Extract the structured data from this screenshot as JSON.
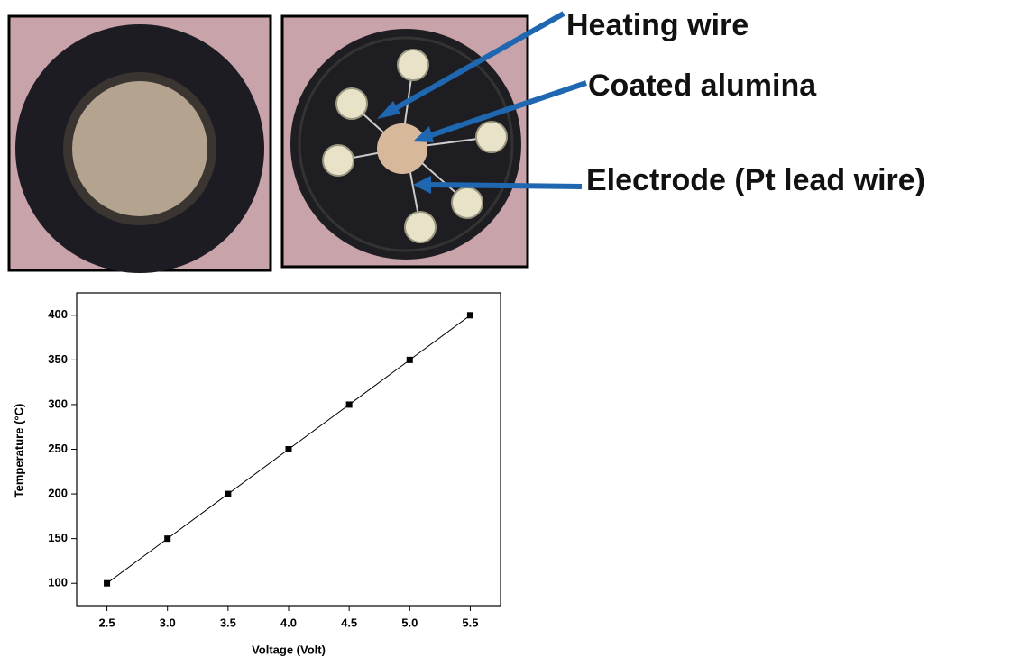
{
  "annotations": [
    "Heating wire",
    "Coated alumina",
    "Electrode (Pt lead wire)"
  ],
  "chart_data": {
    "type": "line",
    "x_label": "Voltage (Volt)",
    "y_label": "Temperature (°C)",
    "x": [
      2.5,
      3,
      3.5,
      4,
      4.5,
      5,
      5.5
    ],
    "series": [
      {
        "color": "#000000",
        "values": [
          100,
          150,
          200,
          250,
          300,
          350,
          400
        ]
      }
    ],
    "xlim": [
      2.25,
      5.75
    ],
    "ylim": [
      75,
      425
    ],
    "xticks": [
      2.5,
      {
        "value": 3,
        "label": "3.0"
      },
      3.5,
      {
        "value": 4,
        "label": "4.0"
      },
      4.5,
      {
        "value": 5,
        "label": "5.0"
      },
      5.5
    ],
    "yticks": [
      100,
      150,
      200,
      250,
      300,
      350,
      400
    ]
  }
}
